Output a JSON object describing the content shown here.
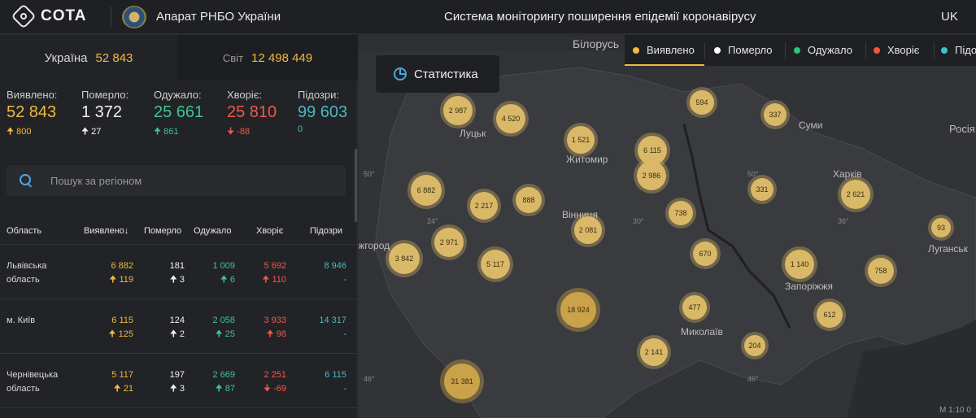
{
  "header": {
    "logo_text": "COTA",
    "org_name": "Апарат РНБО України",
    "system_title": "Система моніторингу поширення епідемії коронавірусу",
    "lang": "UK"
  },
  "tabs": [
    {
      "label": "Україна",
      "value": "52 843"
    },
    {
      "label": "Світ",
      "value": "12 498 449"
    }
  ],
  "stats": [
    {
      "title": "Виявлено:",
      "value": "52 843",
      "delta": "800",
      "arrow": "up"
    },
    {
      "title": "Померло:",
      "value": "1 372",
      "delta": "27",
      "arrow": "up"
    },
    {
      "title": "Одужало:",
      "value": "25 661",
      "delta": "861",
      "arrow": "up"
    },
    {
      "title": "Хворіє:",
      "value": "25 810",
      "delta": "-88",
      "arrow": "down"
    },
    {
      "title": "Підозри:",
      "value": "99 603",
      "delta": "0",
      "arrow": "none"
    }
  ],
  "search": {
    "placeholder": "Пошук за регіоном"
  },
  "table": {
    "headers": [
      "Область",
      "Виявлено",
      "Померло",
      "Одужало",
      "Хворіє",
      "Підозри"
    ],
    "sort_marker": "↓",
    "rows": [
      {
        "name": "Львівська область",
        "detected": "6 882",
        "detected_d": "119",
        "died": "181",
        "died_d": "3",
        "recovered": "1 009",
        "recovered_d": "6",
        "sick": "5 692",
        "sick_d": "110",
        "sick_arrow": "up",
        "suspect": "8 946",
        "suspect_d": "-"
      },
      {
        "name": "м. Київ",
        "detected": "6 115",
        "detected_d": "125",
        "died": "124",
        "died_d": "2",
        "recovered": "2 058",
        "recovered_d": "25",
        "sick": "3 933",
        "sick_d": "98",
        "sick_arrow": "up",
        "suspect": "14 317",
        "suspect_d": "-"
      },
      {
        "name": "Чернівецька область",
        "detected": "5 117",
        "detected_d": "21",
        "died": "197",
        "died_d": "3",
        "recovered": "2 669",
        "recovered_d": "87",
        "sick": "2 251",
        "sick_d": "-69",
        "sick_arrow": "down",
        "suspect": "6 115",
        "suspect_d": "-"
      }
    ]
  },
  "map": {
    "stat_button": "Статистика",
    "legend": [
      {
        "label": "Виявлено",
        "color": "#f0b940",
        "active": true
      },
      {
        "label": "Померло",
        "color": "#ffffff"
      },
      {
        "label": "Одужало",
        "color": "#2ec27e"
      },
      {
        "label": "Хворіє",
        "color": "#f05a3c"
      },
      {
        "label": "Підозри",
        "color": "#3fc1c9"
      }
    ],
    "bubbles": [
      "2 987",
      "4 520",
      "594",
      "337",
      "1 521",
      "6 115",
      "2 986",
      "6 882",
      "2 217",
      "888",
      "331",
      "2 621",
      "738",
      "2 081",
      "2 971",
      "3 842",
      "5 117",
      "670",
      "1 140",
      "758",
      "93",
      "18 924",
      "477",
      "612",
      "2 141",
      "204",
      "31 381"
    ],
    "cities": [
      "Білорусь",
      "Луцьк",
      "Суми",
      "Житомир",
      "Росія",
      "Харків",
      "Вінниця",
      "Луганськ",
      "Ужгород",
      "Запоріжжя",
      "Миколаїв"
    ],
    "coords": [
      "50°",
      "50°",
      "24°",
      "30°",
      "36°",
      "46°",
      "46°"
    ],
    "scale": "М 1:10 0"
  }
}
